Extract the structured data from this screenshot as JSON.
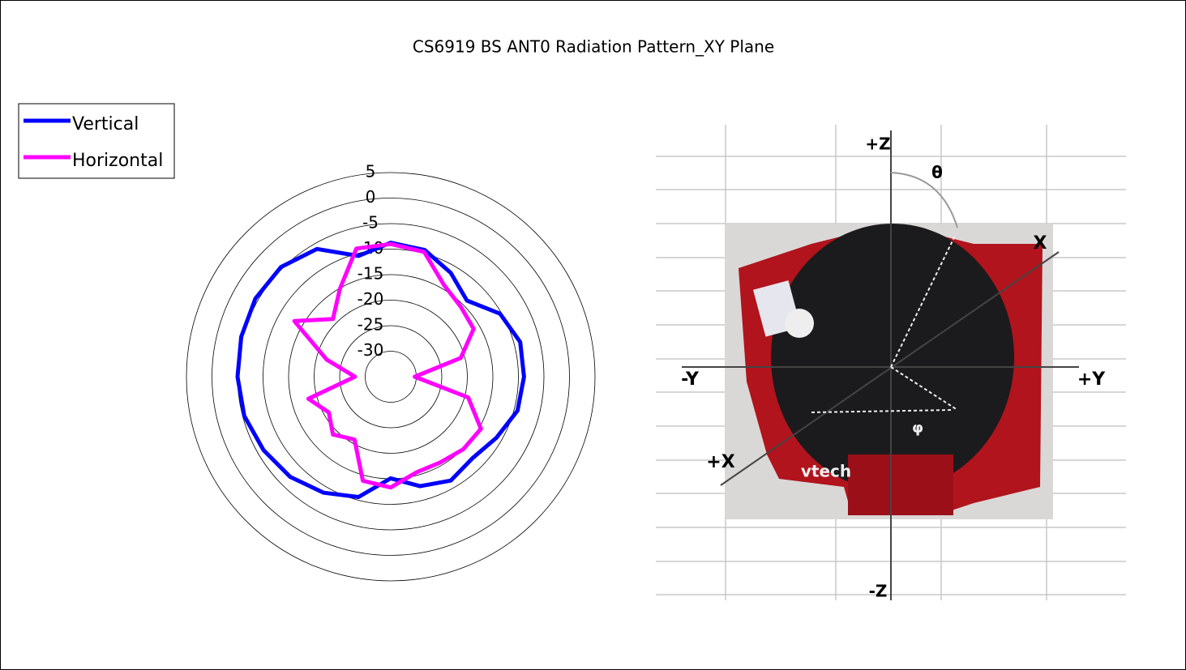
{
  "chart_data": {
    "type": "radar",
    "title": "CS6919 BS ANT0 Radiation Pattern_XY Plane",
    "categories": [
      null,
      null,
      null,
      null,
      null,
      null,
      null,
      null,
      null,
      null,
      null,
      null,
      null,
      null,
      null,
      null,
      null,
      null,
      null,
      null,
      null,
      null,
      null,
      null
    ],
    "series": [
      {
        "name": "Vertical",
        "color": "#0000ff",
        "values": [
          -8.75,
          -9.3,
          -11.5,
          -13.9,
          -10.3,
          -8.75,
          -8.9,
          -9.3,
          -11.1,
          -12.4,
          -11.5,
          -12.8,
          -15.1,
          -10.6,
          -8.75,
          -7.2,
          -6.25,
          -5.3,
          -5,
          -4.7,
          -4.4,
          -4.6,
          -6.1,
          -10.5
        ]
      },
      {
        "name": "Horizontal",
        "color": "#ff00ff",
        "values": [
          -9,
          -9.7,
          -14.2,
          -15.6,
          -16.25,
          -20.8,
          -30.3,
          -19.3,
          -14.6,
          -14.9,
          -15.6,
          -15.6,
          -13.3,
          -13.9,
          -20.8,
          -19,
          -21,
          -18.3,
          -28,
          -22,
          -13.2,
          -19,
          -15.1,
          -9
        ]
      }
    ],
    "rlim": [
      -35,
      5
    ],
    "rticks": [
      5,
      0,
      -5,
      -10,
      -15,
      -20,
      -25,
      -30
    ],
    "legend": "top-left"
  },
  "diagram_labels": [
    "+Z",
    "θ",
    "X",
    "-Y",
    "+Y",
    "+X",
    "φ",
    "-Z",
    "vtech"
  ]
}
